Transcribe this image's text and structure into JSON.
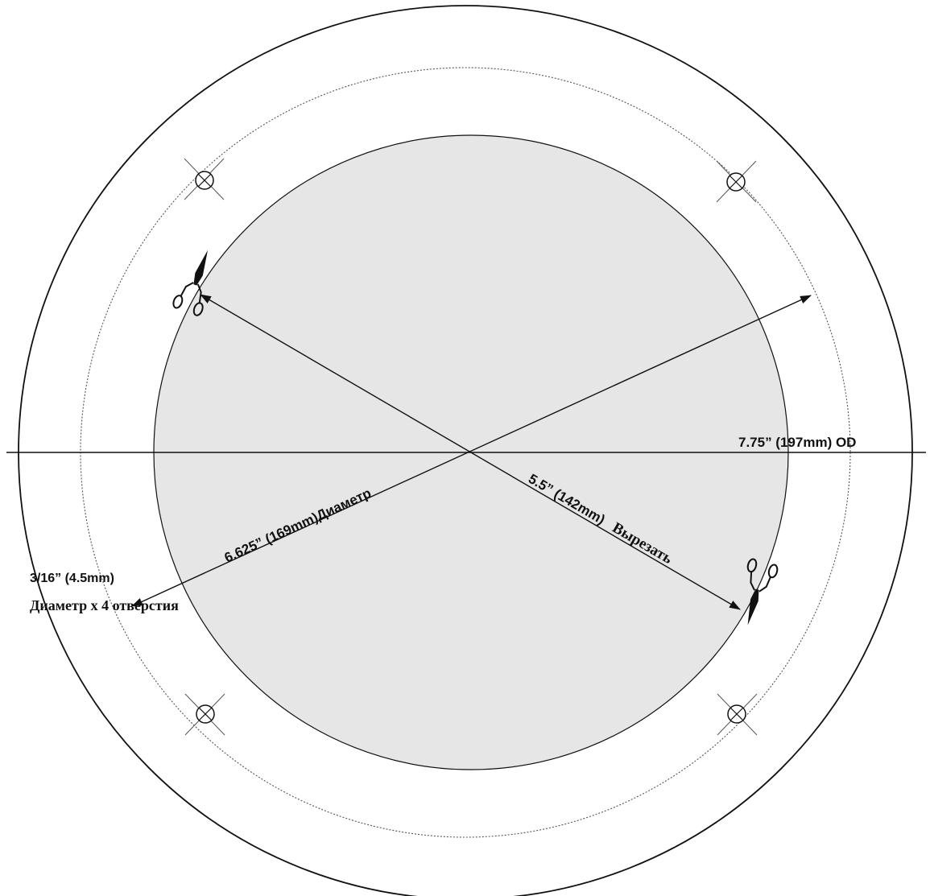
{
  "labels": {
    "outer_diameter": "7.75” (197mm) OD",
    "hole_circle": "6.625” (169mm)Диаметр",
    "cutout_size": "5.5” (142mm)",
    "cutout_word": "Вырезать",
    "hole_size": "3/16” (4.5mm)",
    "hole_count": "Диаметр x 4 отверстия"
  },
  "icons": {
    "cut_marker": "scissors-icon",
    "mounting_hole": "crosshair-hole-icon"
  },
  "colors": {
    "cutout_fill": "#e6e6e6",
    "line": "#111111"
  }
}
